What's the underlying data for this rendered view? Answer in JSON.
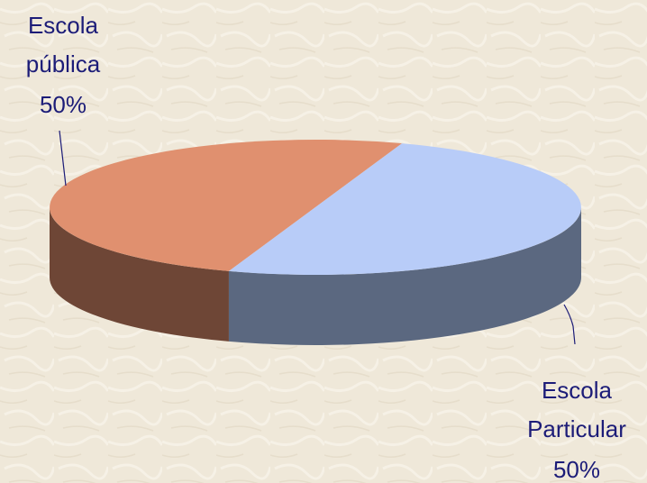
{
  "chart_data": {
    "type": "pie3d",
    "categories": [
      "Escola pública",
      "Escola Particular"
    ],
    "values": [
      50,
      50
    ],
    "value_labels": [
      "50%",
      "50%"
    ],
    "colors": [
      "#e0906f",
      "#b8ccf8"
    ],
    "side_colors": [
      "#6e4636",
      "#5b6880"
    ]
  }
}
